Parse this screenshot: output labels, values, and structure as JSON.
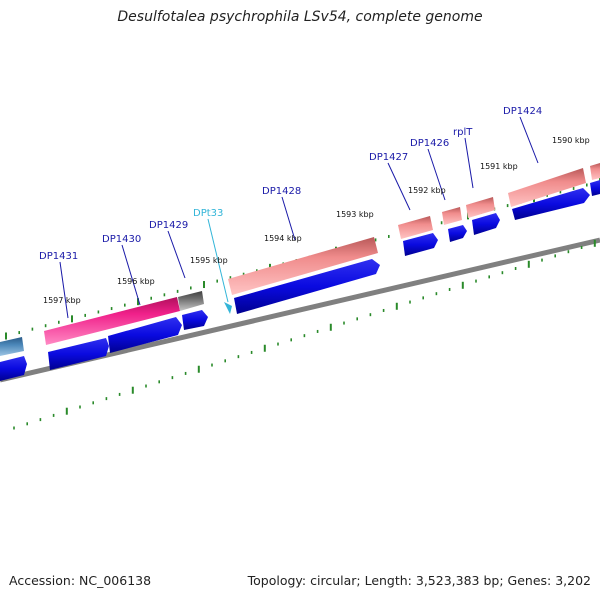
{
  "title": "Desulfotalea psychrophila LSv54, complete genome",
  "footer": {
    "accession": "Accession: NC_006138",
    "topology": "Topology: circular; Length: 3,523,383 bp; Genes: 3,202"
  },
  "colors": {
    "gene_label": "#1a1aa8",
    "trna_label": "#33b5d8",
    "cds_strand": "#0a0ae0",
    "feature_pink": "#f08c8c",
    "feature_magenta": "#f0208a",
    "feature_gray": "#707070",
    "feature_steelblue": "#4a86b8",
    "backbone": "#808080",
    "tick": "#2a8a2a"
  },
  "gene_labels": [
    "DP1431",
    "DP1430",
    "DP1429",
    "DPt33",
    "DP1428",
    "DP1427",
    "DP1426",
    "rplT",
    "DP1424"
  ],
  "kbp_labels": [
    "1597 kbp",
    "1596 kbp",
    "1595 kbp",
    "1594 kbp",
    "1593 kbp",
    "1592 kbp",
    "1591 kbp",
    "1590 kbp"
  ]
}
